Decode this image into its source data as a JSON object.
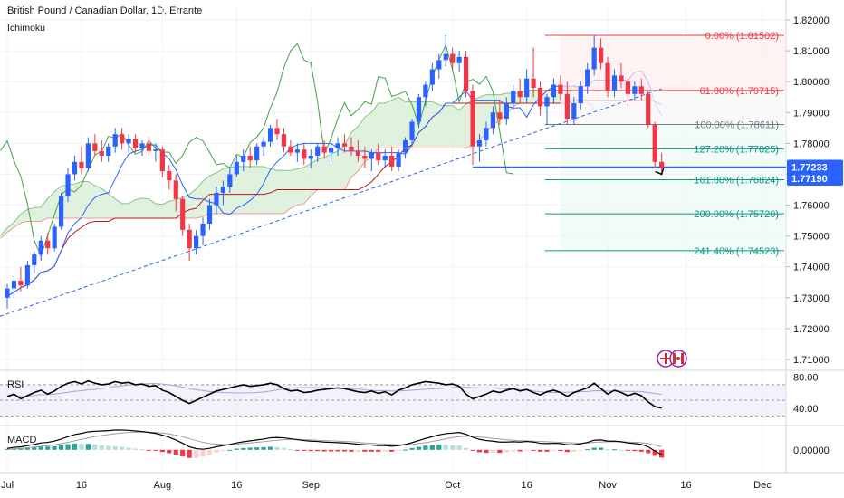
{
  "header": {
    "title": "British Pound / Canadian Dollar, 1D, Errante",
    "indicator": "Ichimoku"
  },
  "colors": {
    "up": "#2962ff",
    "down": "#f23645",
    "ichimoku_conversion": "#2962ff",
    "ichimoku_base": "#b71c1c",
    "ichimoku_lagging": "#43a047",
    "cloud_fill": "#d6ecd2",
    "cloud_line": "#ef9a9a",
    "fib_red": "#f23645",
    "fib_gray": "#787b86",
    "fib_green": "#089981",
    "price_badge": "#2962ff",
    "rsi_line": "#000000",
    "rsi_band": "#ede7f6",
    "macd_pos_strong": "#26a69a",
    "macd_pos_weak": "#b2dfdb",
    "macd_neg_strong": "#f23645",
    "macd_neg_weak": "#ffcdd2"
  },
  "chart_data": {
    "type": "candlestick",
    "symbol": "GBPCAD",
    "timeframe": "1D",
    "y_ticks": [
      "1.82000",
      "1.81000",
      "1.80000",
      "1.79000",
      "1.78000",
      "1.77000",
      "1.76000",
      "1.75000",
      "1.74000",
      "1.73000",
      "1.72000",
      "1.71000"
    ],
    "x_ticks": [
      "Jul",
      "16",
      "Aug",
      "16",
      "Sep",
      "Oct",
      "16",
      "Nov",
      "16",
      "Dec"
    ],
    "ylim": [
      1.706,
      1.823
    ],
    "price_badges": [
      "1.77233",
      "1.77190"
    ],
    "fibonacci_levels": [
      {
        "ratio": "0.00%",
        "price": "1.81502",
        "color_key": "fib_red"
      },
      {
        "ratio": "61.80%",
        "price": "1.79715",
        "color_key": "fib_red"
      },
      {
        "ratio": "100.00%",
        "price": "1.78611",
        "color_key": "fib_gray"
      },
      {
        "ratio": "127.20%",
        "price": "1.77825",
        "color_key": "fib_green"
      },
      {
        "ratio": "161.80%",
        "price": "1.76824",
        "color_key": "fib_green"
      },
      {
        "ratio": "200.00%",
        "price": "1.75720",
        "color_key": "fib_green"
      },
      {
        "ratio": "241.40%",
        "price": "1.74523",
        "color_key": "fib_green"
      }
    ],
    "pattern_points": [
      {
        "date": "Sep 22",
        "price": 1.771
      },
      {
        "date": "Sep 30",
        "price": 1.8148
      },
      {
        "date": "Oct 4",
        "price": 1.7725
      },
      {
        "date": "Oct 25",
        "price": 1.815
      },
      {
        "date": "Nov 13",
        "price": 1.77
      }
    ],
    "trendline": {
      "from": {
        "date": "Jul 1",
        "price": 1.724
      },
      "to": {
        "date": "Nov 13",
        "price": 1.7977
      }
    },
    "candles": [
      [
        "Jul 1",
        1.73,
        1.7345,
        1.7265,
        1.733
      ],
      [
        "Jul 2",
        1.733,
        1.737,
        1.73,
        1.7355
      ],
      [
        "Jul 3",
        1.7355,
        1.74,
        1.732,
        1.734
      ],
      [
        "Jul 4",
        1.734,
        1.742,
        1.733,
        1.7405
      ],
      [
        "Jul 5",
        1.7405,
        1.745,
        1.738,
        1.744
      ],
      [
        "Jul 8",
        1.744,
        1.75,
        1.742,
        1.7485
      ],
      [
        "Jul 9",
        1.7485,
        1.751,
        1.744,
        1.746
      ],
      [
        "Jul 10",
        1.746,
        1.754,
        1.745,
        1.753
      ],
      [
        "Jul 11",
        1.753,
        1.764,
        1.752,
        1.763
      ],
      [
        "Jul 12",
        1.763,
        1.772,
        1.761,
        1.77
      ],
      [
        "Jul 15",
        1.77,
        1.776,
        1.768,
        1.774
      ],
      [
        "Jul 16",
        1.774,
        1.779,
        1.77,
        1.772
      ],
      [
        "Jul 17",
        1.772,
        1.782,
        1.771,
        1.78
      ],
      [
        "Jul 18",
        1.78,
        1.783,
        1.776,
        1.7775
      ],
      [
        "Jul 19",
        1.7775,
        1.781,
        1.774,
        1.776
      ],
      [
        "Jul 22",
        1.776,
        1.78,
        1.774,
        1.779
      ],
      [
        "Jul 23",
        1.779,
        1.785,
        1.777,
        1.783
      ],
      [
        "Jul 24",
        1.783,
        1.785,
        1.778,
        1.78
      ],
      [
        "Jul 25",
        1.78,
        1.783,
        1.777,
        1.7815
      ],
      [
        "Jul 26",
        1.7815,
        1.783,
        1.777,
        1.7785
      ],
      [
        "Jul 29",
        1.7785,
        1.781,
        1.776,
        1.78
      ],
      [
        "Jul 30",
        1.78,
        1.782,
        1.776,
        1.7775
      ],
      [
        "Jul 31",
        1.7775,
        1.78,
        1.774,
        1.778
      ],
      [
        "Aug 1",
        1.778,
        1.779,
        1.769,
        1.771
      ],
      [
        "Aug 2",
        1.771,
        1.773,
        1.765,
        1.768
      ],
      [
        "Aug 5",
        1.768,
        1.77,
        1.758,
        1.762
      ],
      [
        "Aug 6",
        1.762,
        1.763,
        1.75,
        1.752
      ],
      [
        "Aug 7",
        1.752,
        1.754,
        1.742,
        1.746
      ],
      [
        "Aug 8",
        1.746,
        1.752,
        1.744,
        1.75
      ],
      [
        "Aug 9",
        1.75,
        1.756,
        1.747,
        1.754
      ],
      [
        "Aug 12",
        1.754,
        1.762,
        1.752,
        1.76
      ],
      [
        "Aug 13",
        1.76,
        1.766,
        1.757,
        1.764
      ],
      [
        "Aug 14",
        1.764,
        1.768,
        1.76,
        1.766
      ],
      [
        "Aug 15",
        1.766,
        1.772,
        1.764,
        1.77
      ],
      [
        "Aug 16",
        1.77,
        1.776,
        1.769,
        1.774
      ],
      [
        "Aug 19",
        1.774,
        1.778,
        1.771,
        1.776
      ],
      [
        "Aug 20",
        1.776,
        1.779,
        1.772,
        1.7745
      ],
      [
        "Aug 21",
        1.7745,
        1.78,
        1.773,
        1.779
      ],
      [
        "Aug 22",
        1.779,
        1.782,
        1.776,
        1.7805
      ],
      [
        "Aug 23",
        1.7805,
        1.786,
        1.779,
        1.785
      ],
      [
        "Aug 26",
        1.785,
        1.788,
        1.781,
        1.783
      ],
      [
        "Aug 27",
        1.783,
        1.785,
        1.777,
        1.779
      ],
      [
        "Aug 28",
        1.779,
        1.781,
        1.776,
        1.777
      ],
      [
        "Aug 29",
        1.777,
        1.78,
        1.774,
        1.778
      ],
      [
        "Aug 30",
        1.778,
        1.78,
        1.773,
        1.775
      ],
      [
        "Sep 2",
        1.775,
        1.778,
        1.772,
        1.776
      ],
      [
        "Sep 3",
        1.776,
        1.78,
        1.774,
        1.779
      ],
      [
        "Sep 4",
        1.779,
        1.781,
        1.775,
        1.777
      ],
      [
        "Sep 5",
        1.777,
        1.78,
        1.774,
        1.7785
      ],
      [
        "Sep 6",
        1.7785,
        1.782,
        1.776,
        1.78
      ],
      [
        "Sep 9",
        1.78,
        1.783,
        1.777,
        1.779
      ],
      [
        "Sep 10",
        1.779,
        1.782,
        1.776,
        1.7775
      ],
      [
        "Sep 11",
        1.7775,
        1.781,
        1.774,
        1.776
      ],
      [
        "Sep 12",
        1.776,
        1.779,
        1.772,
        1.775
      ],
      [
        "Sep 13",
        1.775,
        1.778,
        1.771,
        1.777
      ],
      [
        "Sep 16",
        1.777,
        1.78,
        1.773,
        1.7745
      ],
      [
        "Sep 17",
        1.7745,
        1.778,
        1.772,
        1.776
      ],
      [
        "Sep 18",
        1.776,
        1.779,
        1.771,
        1.7725
      ],
      [
        "Sep 19",
        1.7725,
        1.778,
        1.771,
        1.777
      ],
      [
        "Sep 20",
        1.777,
        1.782,
        1.775,
        1.781
      ],
      [
        "Sep 23",
        1.781,
        1.788,
        1.779,
        1.787
      ],
      [
        "Sep 24",
        1.787,
        1.796,
        1.785,
        1.795
      ],
      [
        "Sep 25",
        1.795,
        1.8,
        1.792,
        1.799
      ],
      [
        "Sep 26",
        1.799,
        1.806,
        1.797,
        1.804
      ],
      [
        "Sep 27",
        1.804,
        1.809,
        1.801,
        1.807
      ],
      [
        "Sep 30",
        1.807,
        1.815,
        1.805,
        1.809
      ],
      [
        "Oct 1",
        1.809,
        1.811,
        1.804,
        1.806
      ],
      [
        "Oct 2",
        1.806,
        1.81,
        1.803,
        1.808
      ],
      [
        "Oct 3",
        1.808,
        1.81,
        1.795,
        1.797
      ],
      [
        "Oct 4",
        1.797,
        1.799,
        1.773,
        1.779
      ],
      [
        "Oct 7",
        1.779,
        1.783,
        1.774,
        1.781
      ],
      [
        "Oct 8",
        1.781,
        1.787,
        1.779,
        1.785
      ],
      [
        "Oct 9",
        1.785,
        1.792,
        1.783,
        1.79
      ],
      [
        "Oct 10",
        1.79,
        1.794,
        1.786,
        1.788
      ],
      [
        "Oct 11",
        1.788,
        1.795,
        1.786,
        1.793
      ],
      [
        "Oct 14",
        1.793,
        1.799,
        1.791,
        1.797
      ],
      [
        "Oct 15",
        1.797,
        1.801,
        1.793,
        1.795
      ],
      [
        "Oct 16",
        1.795,
        1.804,
        1.793,
        1.801
      ],
      [
        "Oct 17",
        1.801,
        1.811,
        1.795,
        1.798
      ],
      [
        "Oct 18",
        1.798,
        1.8,
        1.789,
        1.792
      ],
      [
        "Oct 21",
        1.792,
        1.796,
        1.786,
        1.795
      ],
      [
        "Oct 22",
        1.795,
        1.801,
        1.793,
        1.799
      ],
      [
        "Oct 23",
        1.799,
        1.802,
        1.794,
        1.796
      ],
      [
        "Oct 24",
        1.796,
        1.8,
        1.786,
        1.788
      ],
      [
        "Oct 25",
        1.788,
        1.795,
        1.786,
        1.793
      ],
      [
        "Oct 28",
        1.793,
        1.8,
        1.791,
        1.7985
      ],
      [
        "Oct 29",
        1.7985,
        1.806,
        1.796,
        1.804
      ],
      [
        "Oct 30",
        1.804,
        1.815,
        1.802,
        1.811
      ],
      [
        "Oct 31",
        1.811,
        1.814,
        1.804,
        1.806
      ],
      [
        "Nov 1",
        1.806,
        1.808,
        1.795,
        1.797
      ],
      [
        "Nov 4",
        1.797,
        1.804,
        1.795,
        1.802
      ],
      [
        "Nov 5",
        1.802,
        1.806,
        1.798,
        1.8
      ],
      [
        "Nov 6",
        1.8,
        1.801,
        1.792,
        1.796
      ],
      [
        "Nov 7",
        1.796,
        1.8,
        1.794,
        1.7985
      ],
      [
        "Nov 8",
        1.7985,
        1.801,
        1.794,
        1.796
      ],
      [
        "Nov 11",
        1.796,
        1.797,
        1.785,
        1.786
      ],
      [
        "Nov 12",
        1.786,
        1.787,
        1.772,
        1.774
      ],
      [
        "Nov 13",
        1.774,
        1.777,
        1.77,
        1.7723
      ]
    ],
    "rsi": {
      "label": "RSI",
      "ticks": [
        "80.00",
        "40.00"
      ],
      "upper": 70,
      "lower": 30,
      "ylim": [
        20,
        85
      ],
      "values": [
        55,
        58,
        52,
        56,
        60,
        63,
        58,
        62,
        68,
        72,
        74,
        71,
        75,
        72,
        70,
        71,
        74,
        72,
        73,
        70,
        71,
        68,
        69,
        63,
        60,
        55,
        50,
        46,
        50,
        54,
        58,
        62,
        64,
        66,
        68,
        70,
        68,
        69,
        70,
        72,
        70,
        65,
        62,
        63,
        60,
        61,
        63,
        64,
        65,
        66,
        65,
        63,
        61,
        60,
        62,
        59,
        61,
        57,
        63,
        66,
        70,
        72,
        74,
        73,
        72,
        70,
        71,
        68,
        58,
        52,
        55,
        58,
        62,
        60,
        63,
        65,
        62,
        64,
        60,
        57,
        61,
        63,
        60,
        55,
        60,
        63,
        66,
        72,
        65,
        58,
        63,
        60,
        56,
        59,
        56,
        48,
        42,
        40
      ]
    },
    "macd": {
      "label": "MACD",
      "ticks": [
        "0.00000"
      ],
      "ylim": [
        -0.007,
        0.0075
      ],
      "macd": [
        0.0005,
        0.0008,
        0.001,
        0.0014,
        0.0018,
        0.0023,
        0.0025,
        0.0029,
        0.0036,
        0.0044,
        0.0051,
        0.0055,
        0.006,
        0.0062,
        0.0063,
        0.0064,
        0.0066,
        0.0066,
        0.0065,
        0.0063,
        0.0061,
        0.0058,
        0.0055,
        0.0049,
        0.0042,
        0.0033,
        0.0022,
        0.001,
        0.0004,
        0.0002,
        0.0005,
        0.001,
        0.0014,
        0.0018,
        0.0023,
        0.0027,
        0.003,
        0.0033,
        0.0036,
        0.004,
        0.0041,
        0.004,
        0.0037,
        0.0034,
        0.0031,
        0.0029,
        0.0028,
        0.0026,
        0.0025,
        0.0024,
        0.0023,
        0.0021,
        0.0019,
        0.0017,
        0.0016,
        0.0014,
        0.0014,
        0.0012,
        0.0014,
        0.0018,
        0.0024,
        0.0031,
        0.0038,
        0.0044,
        0.005,
        0.0054,
        0.0056,
        0.0058,
        0.0052,
        0.0042,
        0.0035,
        0.0031,
        0.0029,
        0.0026,
        0.0026,
        0.0027,
        0.0026,
        0.0028,
        0.0026,
        0.0022,
        0.0021,
        0.0022,
        0.0021,
        0.0017,
        0.0017,
        0.002,
        0.0025,
        0.0032,
        0.0033,
        0.0029,
        0.0029,
        0.0027,
        0.0023,
        0.0021,
        0.0018,
        0.001,
        -0.0004,
        -0.0016
      ],
      "signal": [
        0.0002,
        0.0003,
        0.0005,
        0.0007,
        0.0009,
        0.0012,
        0.0014,
        0.0017,
        0.0021,
        0.0025,
        0.003,
        0.0035,
        0.004,
        0.0044,
        0.0048,
        0.0051,
        0.0054,
        0.0056,
        0.0058,
        0.0059,
        0.0059,
        0.0059,
        0.0058,
        0.0056,
        0.0053,
        0.0049,
        0.0044,
        0.0037,
        0.0031,
        0.0025,
        0.0021,
        0.0019,
        0.0018,
        0.0018,
        0.0019,
        0.0021,
        0.0023,
        0.0025,
        0.0027,
        0.003,
        0.0032,
        0.0034,
        0.0035,
        0.0035,
        0.0034,
        0.0033,
        0.0032,
        0.0031,
        0.003,
        0.0029,
        0.0028,
        0.0027,
        0.0025,
        0.0023,
        0.0022,
        0.002,
        0.0019,
        0.0018,
        0.0017,
        0.0017,
        0.0018,
        0.0021,
        0.0024,
        0.0028,
        0.0032,
        0.0037,
        0.0041,
        0.0044,
        0.0046,
        0.0045,
        0.0043,
        0.0041,
        0.0038,
        0.0036,
        0.0034,
        0.0032,
        0.0031,
        0.003,
        0.0029,
        0.0028,
        0.0027,
        0.0026,
        0.0025,
        0.0024,
        0.0023,
        0.0022,
        0.0023,
        0.0025,
        0.0026,
        0.0027,
        0.0027,
        0.0027,
        0.0026,
        0.0025,
        0.0024,
        0.0021,
        0.0016,
        0.001
      ]
    }
  }
}
